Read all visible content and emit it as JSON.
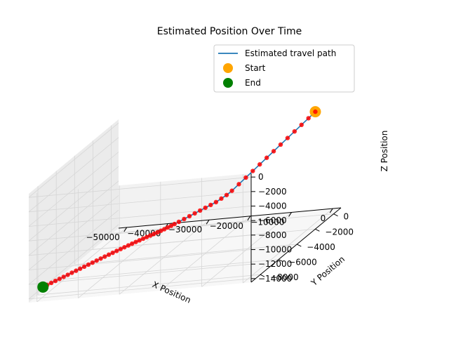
{
  "chart_data": {
    "type": "scatter",
    "title": "Estimated Position Over Time",
    "xlabel": "X Position",
    "ylabel": "Y Position",
    "zlabel": "Z Position",
    "x_ticks": [
      "−50000",
      "−40000",
      "−30000",
      "−20000",
      "−10000",
      "0"
    ],
    "y_ticks": [
      "0",
      "−2000",
      "−4000",
      "−6000",
      "−8000"
    ],
    "z_ticks": [
      "0",
      "−2000",
      "−4000",
      "−6000",
      "−8000",
      "−10000",
      "−12000",
      "−14000"
    ],
    "legend": {
      "position": "upper-right",
      "entries": [
        {
          "label": "Estimated travel path",
          "color": "#1f77b4",
          "marker": "line"
        },
        {
          "label": "Start",
          "color": "#ffa500",
          "marker": "circle"
        },
        {
          "label": "End",
          "color": "#008000",
          "marker": "circle"
        }
      ]
    },
    "colors": {
      "path_points": "#ff0000",
      "path_line": "#1f77b4",
      "start": "#ffa500",
      "end": "#008000"
    },
    "xlim": [
      -52000,
      2000
    ],
    "ylim": [
      -9000,
      800
    ],
    "zlim": [
      -14500,
      500
    ],
    "grid": true,
    "series": [
      {
        "name": "Estimated travel path",
        "points": [
          [
            -2000,
            -200,
            0
          ],
          [
            -3400,
            -320,
            -700
          ],
          [
            -4800,
            -450,
            -1400
          ],
          [
            -6200,
            -580,
            -2100
          ],
          [
            -7600,
            -710,
            -2800
          ],
          [
            -9000,
            -840,
            -3500
          ],
          [
            -10400,
            -970,
            -4200
          ],
          [
            -11800,
            -1100,
            -4900
          ],
          [
            -13200,
            -1230,
            -5600
          ],
          [
            -14600,
            -1360,
            -6300
          ],
          [
            -16000,
            -1490,
            -7000
          ],
          [
            -17400,
            -1620,
            -7700
          ],
          [
            -18800,
            -1750,
            -8400
          ],
          [
            -19800,
            -1880,
            -8800
          ],
          [
            -20800,
            -2010,
            -9100
          ],
          [
            -21800,
            -2140,
            -9400
          ],
          [
            -22800,
            -2270,
            -9600
          ],
          [
            -23800,
            -2400,
            -9800
          ],
          [
            -24800,
            -2530,
            -10000
          ],
          [
            -25800,
            -2660,
            -10200
          ],
          [
            -26800,
            -2790,
            -10400
          ],
          [
            -27800,
            -2920,
            -10600
          ],
          [
            -28800,
            -3050,
            -10800
          ],
          [
            -29600,
            -3160,
            -10950
          ],
          [
            -30200,
            -3260,
            -11050
          ],
          [
            -30800,
            -3360,
            -11150
          ],
          [
            -31400,
            -3460,
            -11250
          ],
          [
            -32000,
            -3560,
            -11330
          ],
          [
            -32600,
            -3680,
            -11400
          ],
          [
            -33200,
            -3800,
            -11460
          ],
          [
            -33800,
            -3920,
            -11520
          ],
          [
            -34400,
            -4040,
            -11580
          ],
          [
            -35000,
            -4160,
            -11640
          ],
          [
            -35600,
            -4290,
            -11700
          ],
          [
            -36200,
            -4420,
            -11760
          ],
          [
            -36800,
            -4560,
            -11820
          ],
          [
            -37400,
            -4700,
            -11880
          ],
          [
            -38000,
            -4850,
            -11940
          ],
          [
            -38600,
            -5000,
            -12000
          ],
          [
            -39200,
            -5160,
            -12060
          ],
          [
            -39800,
            -5320,
            -12120
          ],
          [
            -40400,
            -5480,
            -12180
          ],
          [
            -41000,
            -5650,
            -12240
          ],
          [
            -41600,
            -5820,
            -12300
          ],
          [
            -42200,
            -6000,
            -12360
          ],
          [
            -42800,
            -6180,
            -12420
          ],
          [
            -43400,
            -6360,
            -12480
          ],
          [
            -44000,
            -6540,
            -12540
          ],
          [
            -44600,
            -6720,
            -12600
          ],
          [
            -45200,
            -6900,
            -12660
          ],
          [
            -45800,
            -7080,
            -12720
          ],
          [
            -46400,
            -7260,
            -12780
          ],
          [
            -47000,
            -7440,
            -12840
          ],
          [
            -47600,
            -7620,
            -12900
          ],
          [
            -48200,
            -7800,
            -12960
          ],
          [
            -48800,
            -7980,
            -13020
          ],
          [
            -49400,
            -8160,
            -13080
          ],
          [
            -50000,
            -8350,
            -13140
          ]
        ]
      }
    ],
    "start": [
      -2000,
      -200,
      0
    ],
    "end": [
      -50000,
      -8350,
      -13140
    ]
  }
}
